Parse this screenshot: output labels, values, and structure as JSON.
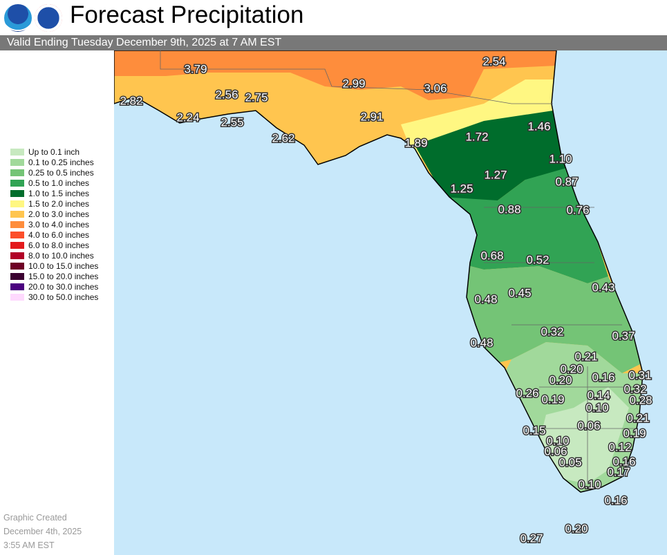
{
  "header": {
    "title": "Forecast Precipitation",
    "valid": "Valid Ending Tuesday December 9th, 2025 at 7 AM EST",
    "logos": [
      "NOAA",
      "National Weather Service"
    ]
  },
  "legend": [
    {
      "label": "Up to 0.1 inch",
      "color": "#c7e9c0"
    },
    {
      "label": "0.1 to 0.25 inches",
      "color": "#a1d99b"
    },
    {
      "label": "0.25 to 0.5 inches",
      "color": "#74c476"
    },
    {
      "label": "0.5 to 1.0 inches",
      "color": "#31a354"
    },
    {
      "label": "1.0 to 1.5 inches",
      "color": "#006d2c"
    },
    {
      "label": "1.5 to 2.0 inches",
      "color": "#fff782"
    },
    {
      "label": "2.0 to 3.0 inches",
      "color": "#ffc54f"
    },
    {
      "label": "3.0 to 4.0 inches",
      "color": "#fe8d3c"
    },
    {
      "label": "4.0 to 6.0 inches",
      "color": "#fc4e2a"
    },
    {
      "label": "6.0 to 8.0 inches",
      "color": "#e31a1c"
    },
    {
      "label": "8.0 to 10.0 inches",
      "color": "#b10026"
    },
    {
      "label": "10.0 to 15.0 inches",
      "color": "#6e0026"
    },
    {
      "label": "15.0 to 20.0 inches",
      "color": "#3b0031"
    },
    {
      "label": "20.0 to 30.0 inches",
      "color": "#4b0080"
    },
    {
      "label": "30.0 to 50.0 inches",
      "color": "#fed9fd"
    }
  ],
  "created": {
    "line1": "Graphic Created",
    "line2": "December 4th, 2025",
    "line3": "3:55 AM EST"
  },
  "map": {
    "water_color": "#c8e8fa",
    "values": [
      "3.79",
      "2.54",
      "2.82",
      "2.99",
      "3.06",
      "2.56",
      "2.75",
      "2.24",
      "2.55",
      "2.91",
      "2.62",
      "1.46",
      "1.89",
      "1.72",
      "1.10",
      "1.27",
      "0.87",
      "1.25",
      "0.88",
      "0.76",
      "0.68",
      "0.52",
      "0.43",
      "0.48",
      "0.45",
      "0.32",
      "0.37",
      "0.48",
      "0.21",
      "0.20",
      "0.20",
      "0.16",
      "0.31",
      "0.32",
      "0.26",
      "0.19",
      "0.14",
      "0.28",
      "0.10",
      "0.21",
      "0.06",
      "0.15",
      "0.19",
      "0.10",
      "0.12",
      "0.06",
      "0.16",
      "0.05",
      "0.17",
      "0.10",
      "0.16",
      "0.20",
      "0.27"
    ]
  }
}
